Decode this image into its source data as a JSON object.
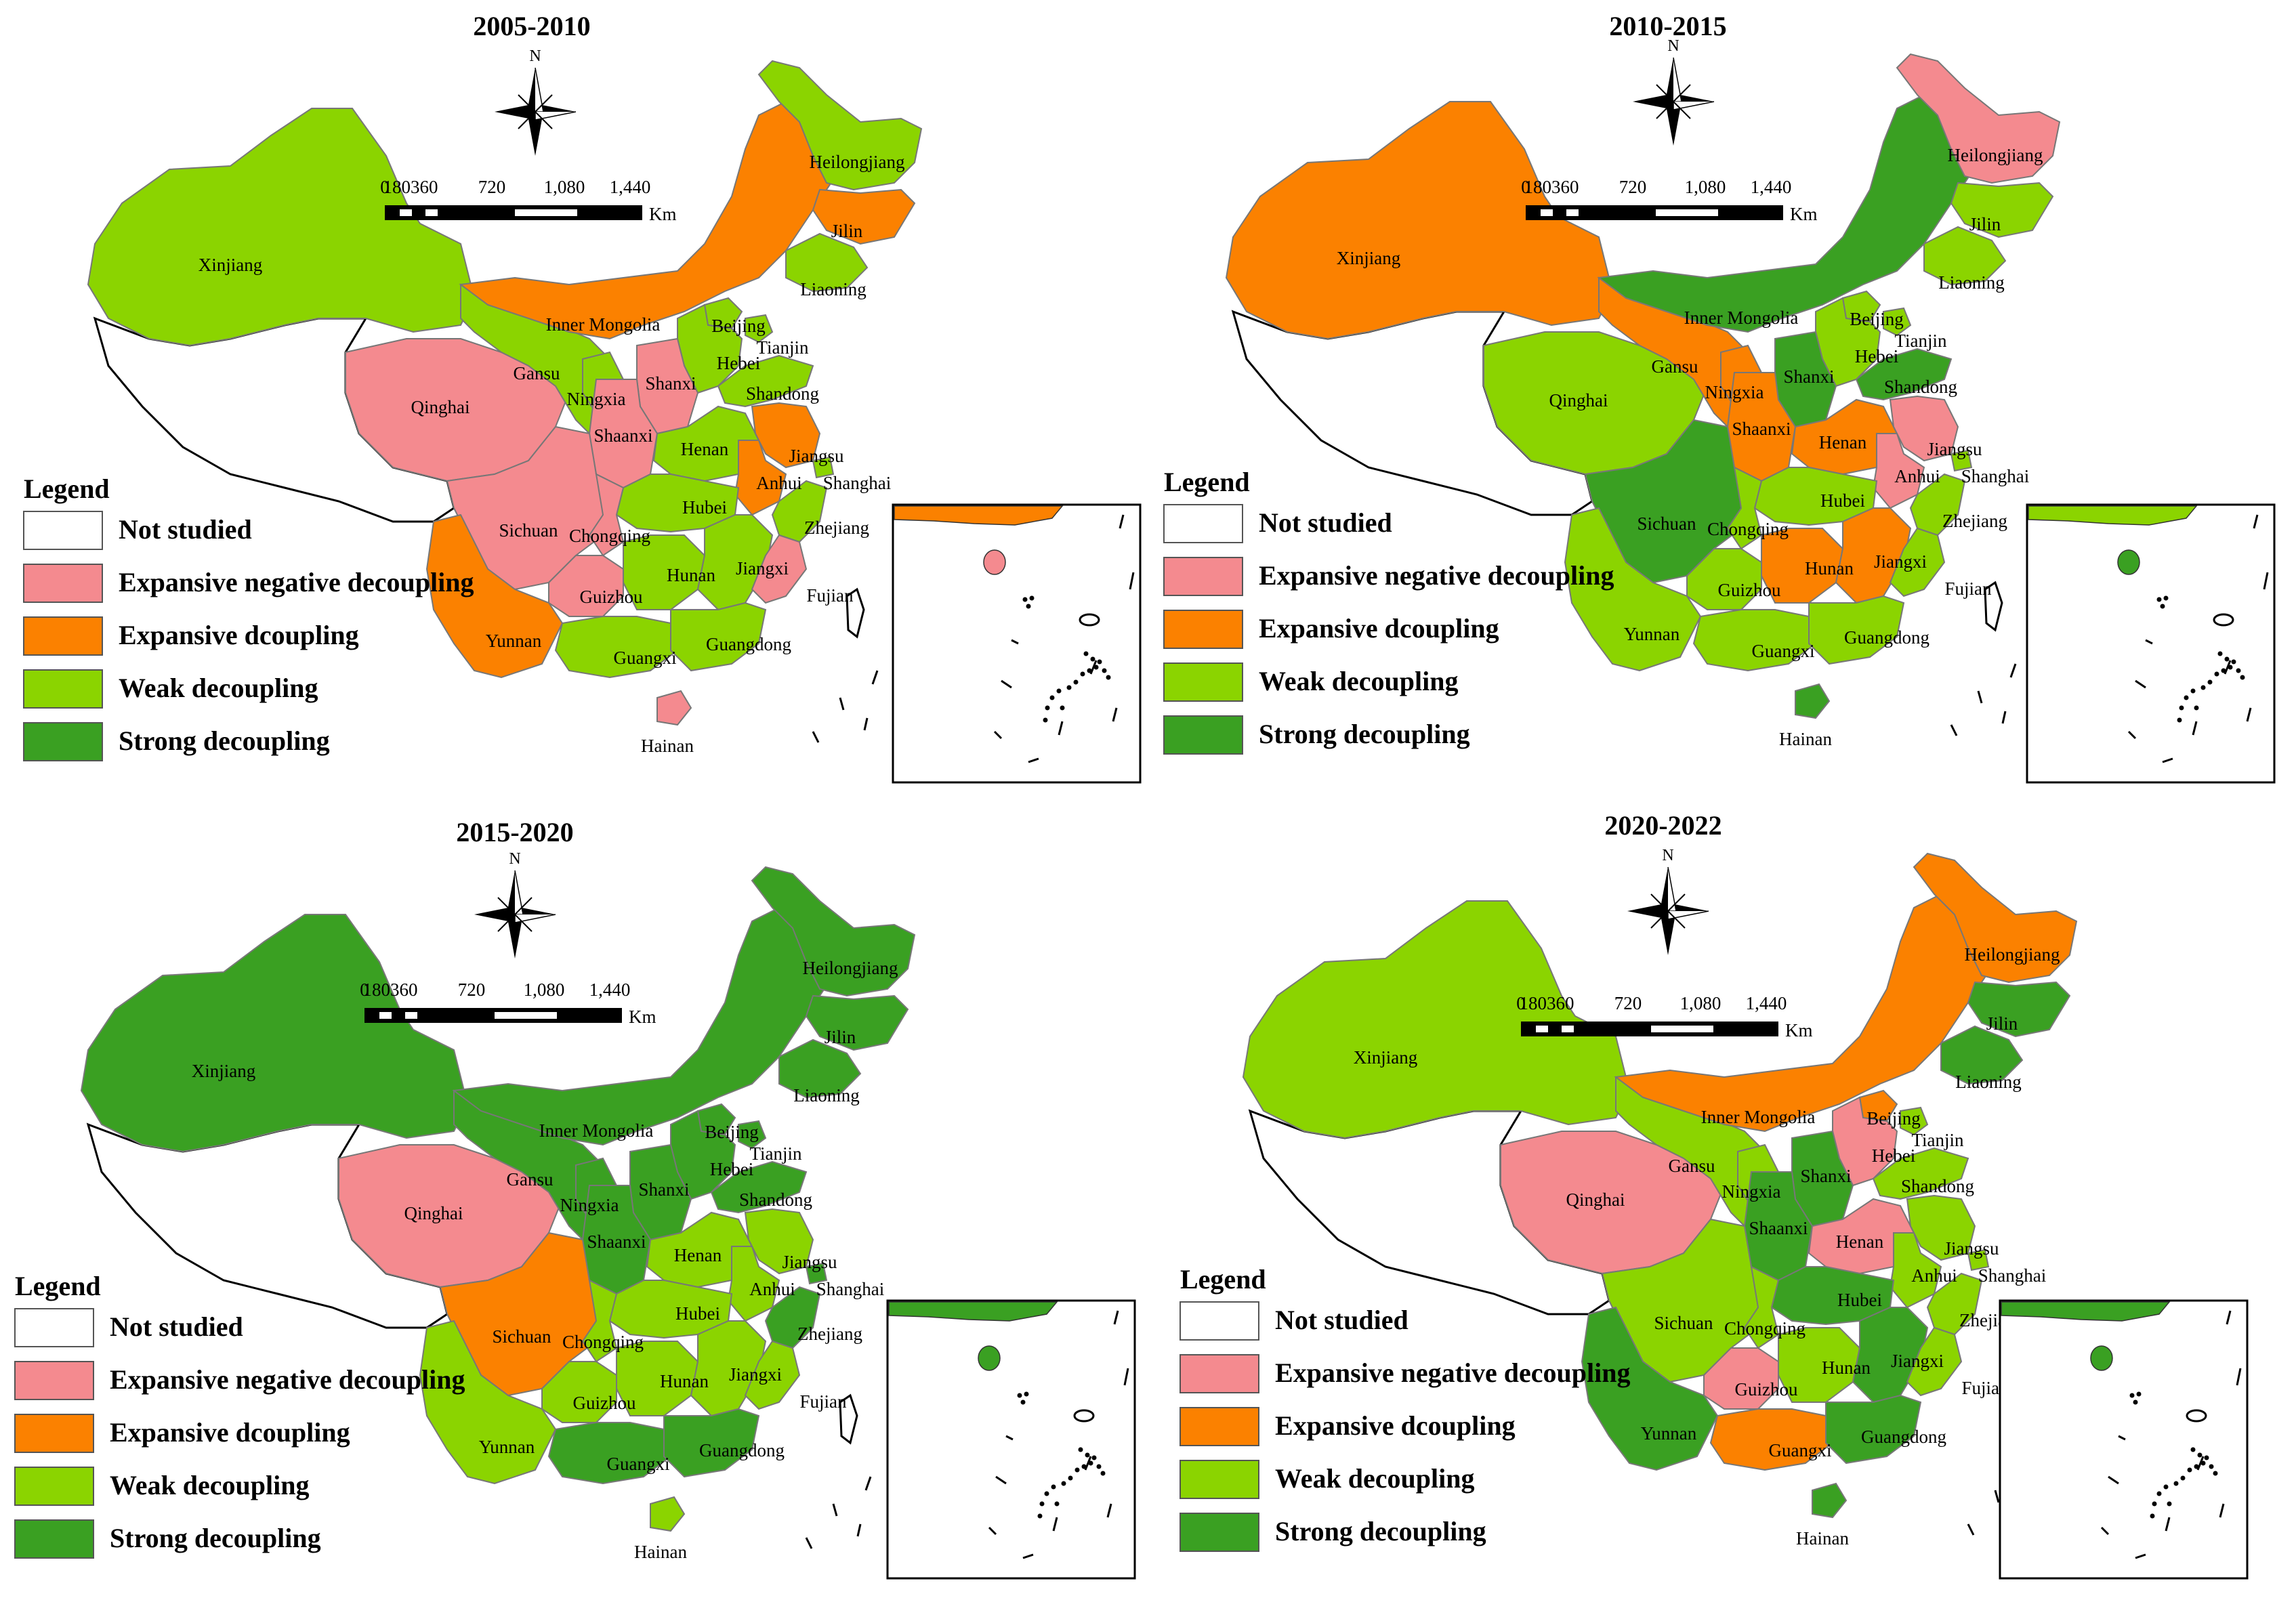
{
  "colors": {
    "not_studied": "#ffffff",
    "expansive_negative": "#f48a8f",
    "expansive": "#fb8100",
    "weak": "#8bd400",
    "strong": "#3aa022",
    "border": "#777777",
    "outline": "#000000"
  },
  "legend": {
    "title": "Legend",
    "items": [
      {
        "key": "not_studied",
        "label": "Not studied"
      },
      {
        "key": "expansive_negative",
        "label": "Expansive negative decoupling"
      },
      {
        "key": "expansive",
        "label": "Expansive dcoupling"
      },
      {
        "key": "weak",
        "label": "Weak decoupling"
      },
      {
        "key": "strong",
        "label": "Strong decoupling"
      }
    ]
  },
  "scale": {
    "ticks": [
      "0",
      "180360",
      "720",
      "1,080",
      "1,440"
    ],
    "unit": "Km"
  },
  "north_label": "N",
  "provinces": [
    "Xinjiang",
    "Qinghai",
    "Gansu",
    "Ningxia",
    "Inner Mongolia",
    "Heilongjiang",
    "Jilin",
    "Liaoning",
    "Beijing",
    "Tianjin",
    "Hebei",
    "Shanxi",
    "Shandong",
    "Shaanxi",
    "Henan",
    "Jiangsu",
    "Anhui",
    "Shanghai",
    "Hubei",
    "Zhejiang",
    "Sichuan",
    "Chongqing",
    "Hunan",
    "Jiangxi",
    "Guizhou",
    "Fujian",
    "Yunnan",
    "Guangxi",
    "Guangdong",
    "Hainan"
  ],
  "panels": [
    {
      "title": "2005-2010",
      "inset_mainland": "expansive",
      "inset_island": "expansive_negative",
      "classes": {
        "Xinjiang": "weak",
        "Qinghai": "expansive_negative",
        "Gansu": "weak",
        "Ningxia": "weak",
        "Inner Mongolia": "expansive",
        "Heilongjiang": "weak",
        "Jilin": "expansive",
        "Liaoning": "weak",
        "Beijing": "weak",
        "Tianjin": "weak",
        "Hebei": "weak",
        "Shanxi": "expansive_negative",
        "Shandong": "weak",
        "Shaanxi": "expansive_negative",
        "Henan": "weak",
        "Jiangsu": "expansive",
        "Anhui": "expansive",
        "Shanghai": "weak",
        "Hubei": "weak",
        "Zhejiang": "weak",
        "Sichuan": "expansive_negative",
        "Chongqing": "expansive_negative",
        "Hunan": "weak",
        "Jiangxi": "weak",
        "Guizhou": "expansive_negative",
        "Fujian": "expansive_negative",
        "Yunnan": "expansive",
        "Guangxi": "weak",
        "Guangdong": "weak",
        "Hainan": "expansive_negative"
      }
    },
    {
      "title": "2010-2015",
      "inset_mainland": "weak",
      "inset_island": "strong",
      "classes": {
        "Xinjiang": "expansive",
        "Qinghai": "weak",
        "Gansu": "expansive",
        "Ningxia": "expansive",
        "Inner Mongolia": "strong",
        "Heilongjiang": "expansive_negative",
        "Jilin": "weak",
        "Liaoning": "weak",
        "Beijing": "weak",
        "Tianjin": "weak",
        "Hebei": "weak",
        "Shanxi": "strong",
        "Shandong": "strong",
        "Shaanxi": "expansive",
        "Henan": "expansive",
        "Jiangsu": "expansive_negative",
        "Anhui": "expansive_negative",
        "Shanghai": "weak",
        "Hubei": "weak",
        "Zhejiang": "weak",
        "Sichuan": "strong",
        "Chongqing": "weak",
        "Hunan": "expansive",
        "Jiangxi": "expansive",
        "Guizhou": "weak",
        "Fujian": "weak",
        "Yunnan": "weak",
        "Guangxi": "weak",
        "Guangdong": "weak",
        "Hainan": "strong"
      }
    },
    {
      "title": "2015-2020",
      "inset_mainland": "strong",
      "inset_island": "strong",
      "classes": {
        "Xinjiang": "strong",
        "Qinghai": "expansive_negative",
        "Gansu": "strong",
        "Ningxia": "strong",
        "Inner Mongolia": "strong",
        "Heilongjiang": "strong",
        "Jilin": "strong",
        "Liaoning": "strong",
        "Beijing": "strong",
        "Tianjin": "strong",
        "Hebei": "strong",
        "Shanxi": "strong",
        "Shandong": "strong",
        "Shaanxi": "strong",
        "Henan": "weak",
        "Jiangsu": "weak",
        "Anhui": "weak",
        "Shanghai": "strong",
        "Hubei": "weak",
        "Zhejiang": "strong",
        "Sichuan": "expansive",
        "Chongqing": "weak",
        "Hunan": "weak",
        "Jiangxi": "weak",
        "Guizhou": "weak",
        "Fujian": "weak",
        "Yunnan": "weak",
        "Guangxi": "strong",
        "Guangdong": "strong",
        "Hainan": "weak"
      }
    },
    {
      "title": "2020-2022",
      "inset_mainland": "strong",
      "inset_island": "strong",
      "classes": {
        "Xinjiang": "weak",
        "Qinghai": "expansive_negative",
        "Gansu": "weak",
        "Ningxia": "weak",
        "Inner Mongolia": "expansive",
        "Heilongjiang": "expansive",
        "Jilin": "strong",
        "Liaoning": "strong",
        "Beijing": "expansive",
        "Tianjin": "weak",
        "Hebei": "expansive_negative",
        "Shanxi": "strong",
        "Shandong": "weak",
        "Shaanxi": "strong",
        "Henan": "expansive_negative",
        "Jiangsu": "weak",
        "Anhui": "weak",
        "Shanghai": "weak",
        "Hubei": "strong",
        "Zhejiang": "weak",
        "Sichuan": "weak",
        "Chongqing": "weak",
        "Hunan": "weak",
        "Jiangxi": "strong",
        "Guizhou": "expansive_negative",
        "Fujian": "weak",
        "Yunnan": "strong",
        "Guangxi": "expansive",
        "Guangdong": "strong",
        "Hainan": "strong"
      }
    }
  ]
}
